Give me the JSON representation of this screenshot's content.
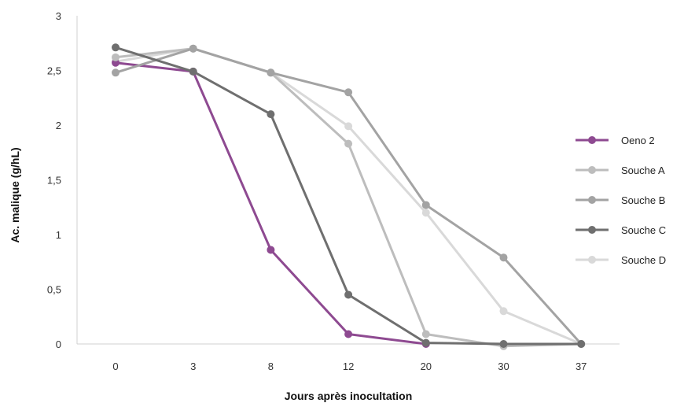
{
  "chart_data": {
    "type": "line",
    "xlabel": "Jours après inocultation",
    "ylabel": "Ac. malique (g/hL)",
    "categories": [
      "0",
      "3",
      "8",
      "12",
      "20",
      "30",
      "37"
    ],
    "ylim": [
      0,
      3
    ],
    "yticks": [
      "0",
      "0,5",
      "1",
      "1,5",
      "2",
      "2,5",
      "3"
    ],
    "grid": false,
    "legend_position": "right",
    "series": [
      {
        "name": "Oeno 2",
        "color": "#8e4a91",
        "values": [
          2.57,
          2.49,
          0.86,
          0.09,
          0.0,
          null,
          null
        ]
      },
      {
        "name": "Souche A",
        "color": "#bdbdbd",
        "values": [
          2.62,
          2.7,
          2.48,
          1.83,
          0.09,
          -0.02,
          0.0
        ]
      },
      {
        "name": "Souche B",
        "color": "#a3a3a3",
        "values": [
          2.48,
          2.7,
          2.48,
          2.3,
          1.27,
          0.79,
          0.0
        ]
      },
      {
        "name": "Souche C",
        "color": "#6f6f6f",
        "values": [
          2.71,
          2.49,
          2.1,
          0.45,
          0.01,
          0.0,
          0.0
        ]
      },
      {
        "name": "Souche D",
        "color": "#d9d9d9",
        "values": [
          2.58,
          2.7,
          2.48,
          1.99,
          1.2,
          0.3,
          0.0
        ]
      }
    ]
  }
}
